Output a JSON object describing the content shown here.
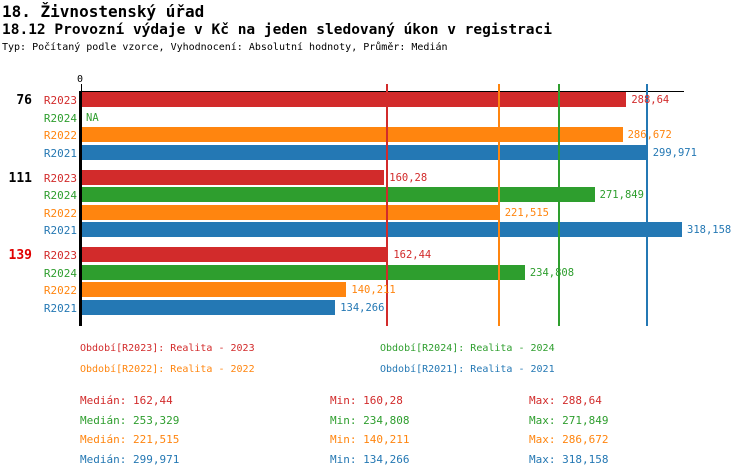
{
  "header": {
    "title": "18. Živnostenský úřad",
    "subtitle": "18.12 Provozní výdaje v Kč na jeden sledovaný úkon v registraci",
    "type_line": "Typ: Počítaný podle vzorce, Vyhodnocení: Absolutní hodnoty, Průměr: Medián"
  },
  "axis": {
    "zero_label": "0"
  },
  "chart_data": {
    "type": "bar",
    "orientation": "horizontal",
    "unit": "Kč",
    "series_order": [
      "R2023",
      "R2024",
      "R2022",
      "R2021"
    ],
    "series_colors": {
      "R2023": "#D22B2B",
      "R2024": "#2E9E2E",
      "R2022": "#FF850F",
      "R2021": "#2478B4"
    },
    "xlim": [
      0,
      318.158
    ],
    "groups": [
      {
        "label": "76",
        "label_color": "#000000",
        "bars": [
          {
            "series": "R2023",
            "value": 288.64,
            "display": "288,64"
          },
          {
            "series": "R2024",
            "value": null,
            "display": "NA"
          },
          {
            "series": "R2022",
            "value": 286.672,
            "display": "286,672"
          },
          {
            "series": "R2021",
            "value": 299.971,
            "display": "299,971"
          }
        ]
      },
      {
        "label": "111",
        "label_color": "#000000",
        "bars": [
          {
            "series": "R2023",
            "value": 160.28,
            "display": "160,28"
          },
          {
            "series": "R2024",
            "value": 271.849,
            "display": "271,849"
          },
          {
            "series": "R2022",
            "value": 221.515,
            "display": "221,515"
          },
          {
            "series": "R2021",
            "value": 318.158,
            "display": "318,158"
          }
        ]
      },
      {
        "label": "139",
        "label_color": "#E00000",
        "bars": [
          {
            "series": "R2023",
            "value": 162.44,
            "display": "162,44"
          },
          {
            "series": "R2024",
            "value": 234.808,
            "display": "234,808"
          },
          {
            "series": "R2022",
            "value": 140.211,
            "display": "140,211"
          },
          {
            "series": "R2021",
            "value": 134.266,
            "display": "134,266"
          }
        ]
      }
    ],
    "median_lines": [
      {
        "series": "R2023",
        "value": 162.44
      },
      {
        "series": "R2022",
        "value": 221.515
      },
      {
        "series": "R2024",
        "value": 253.329
      },
      {
        "series": "R2021",
        "value": 299.971
      }
    ]
  },
  "legend": {
    "rows": [
      [
        {
          "series": "R2023",
          "text": "Období[R2023]: Realita - 2023"
        },
        {
          "series": "R2024",
          "text": "Období[R2024]: Realita - 2024"
        }
      ],
      [
        {
          "series": "R2022",
          "text": "Období[R2022]: Realita - 2022"
        },
        {
          "series": "R2021",
          "text": "Období[R2021]: Realita - 2021"
        }
      ]
    ]
  },
  "stats": {
    "rows": [
      {
        "series": "R2023",
        "median": "Medián: 162,44",
        "min": "Min: 160,28",
        "max": "Max: 288,64"
      },
      {
        "series": "R2024",
        "median": "Medián: 253,329",
        "min": "Min: 234,808",
        "max": "Max: 271,849"
      },
      {
        "series": "R2022",
        "median": "Medián: 221,515",
        "min": "Min: 140,211",
        "max": "Max: 286,672"
      },
      {
        "series": "R2021",
        "median": "Medián: 299,971",
        "min": "Min: 134,266",
        "max": "Max: 318,158"
      }
    ]
  }
}
